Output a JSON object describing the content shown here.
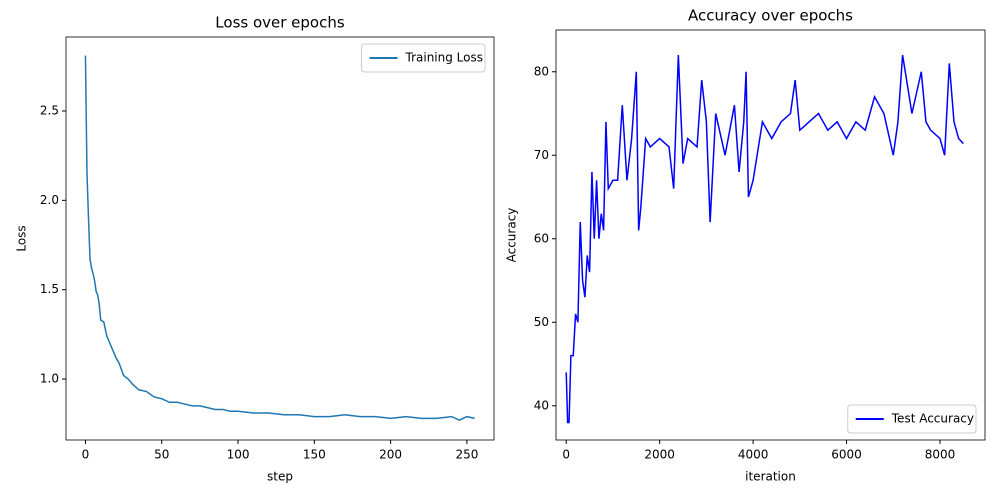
{
  "chart_data": [
    {
      "type": "line",
      "title": "Loss over epochs",
      "xlabel": "step",
      "ylabel": "Loss",
      "x": [
        0,
        1,
        2,
        3,
        4,
        5,
        6,
        7,
        8,
        9,
        10,
        12,
        14,
        16,
        18,
        20,
        22,
        25,
        28,
        31,
        35,
        40,
        45,
        50,
        55,
        60,
        65,
        70,
        75,
        80,
        85,
        90,
        95,
        100,
        110,
        120,
        130,
        140,
        150,
        160,
        170,
        180,
        190,
        200,
        210,
        220,
        230,
        240,
        245,
        250,
        255
      ],
      "series": [
        {
          "name": "Training Loss",
          "color": "#1f77b4",
          "values": [
            2.81,
            2.15,
            1.9,
            1.67,
            1.62,
            1.59,
            1.55,
            1.49,
            1.47,
            1.42,
            1.33,
            1.32,
            1.24,
            1.2,
            1.16,
            1.12,
            1.09,
            1.02,
            1.0,
            0.97,
            0.94,
            0.93,
            0.9,
            0.89,
            0.87,
            0.87,
            0.86,
            0.85,
            0.85,
            0.84,
            0.83,
            0.83,
            0.82,
            0.82,
            0.81,
            0.81,
            0.8,
            0.8,
            0.79,
            0.79,
            0.8,
            0.79,
            0.79,
            0.78,
            0.79,
            0.78,
            0.78,
            0.79,
            0.77,
            0.79,
            0.78
          ]
        }
      ],
      "xlim": [
        -12.75,
        267.75
      ],
      "ylim": [
        0.659,
        2.914
      ],
      "xticks": [
        0,
        50,
        100,
        150,
        200,
        250
      ],
      "yticks": [
        {
          "value": 1.0,
          "label": "1.0"
        },
        {
          "value": 1.5,
          "label": "1.5"
        },
        {
          "value": 2.0,
          "label": "2.0"
        },
        {
          "value": 2.5,
          "label": "2.5"
        }
      ],
      "legend": "upper right"
    },
    {
      "type": "line",
      "title": "Accuracy over epochs",
      "xlabel": "iteration",
      "ylabel": "Accuracy",
      "x": [
        0,
        30,
        60,
        100,
        150,
        200,
        250,
        300,
        350,
        400,
        450,
        500,
        550,
        600,
        650,
        700,
        750,
        800,
        850,
        900,
        1000,
        1100,
        1200,
        1300,
        1400,
        1500,
        1550,
        1600,
        1700,
        1800,
        2000,
        2200,
        2300,
        2400,
        2500,
        2600,
        2800,
        2900,
        3000,
        3080,
        3200,
        3400,
        3500,
        3600,
        3700,
        3800,
        3850,
        3900,
        4000,
        4200,
        4400,
        4600,
        4800,
        4900,
        5000,
        5200,
        5400,
        5600,
        5800,
        6000,
        6200,
        6400,
        6500,
        6600,
        6800,
        7000,
        7100,
        7200,
        7400,
        7600,
        7700,
        7800,
        8000,
        8100,
        8200,
        8300,
        8400,
        8500
      ],
      "series": [
        {
          "name": "Test Accuracy",
          "color": "#0000ff",
          "values": [
            44,
            38,
            38,
            46,
            46,
            51,
            50,
            62,
            55,
            53,
            58,
            56,
            68,
            60,
            67,
            60,
            63,
            61,
            74,
            66,
            67,
            67,
            76,
            67,
            72,
            80,
            61,
            64,
            72,
            71,
            72,
            71,
            66,
            82,
            69,
            72,
            71,
            79,
            74,
            62,
            75,
            70,
            73,
            76,
            68,
            74,
            80,
            65,
            67,
            74,
            72,
            74,
            75,
            79,
            73,
            74,
            75,
            73,
            74,
            72,
            74,
            73,
            75,
            77,
            75,
            70,
            74,
            82,
            75,
            80,
            74,
            73,
            72,
            70,
            81,
            74,
            72,
            71.4
          ]
        }
      ],
      "xlim": [
        -219,
        8964
      ],
      "ylim": [
        35.9,
        85.0
      ],
      "xticks": [
        0,
        2000,
        4000,
        6000,
        8000
      ],
      "yticks": [
        40,
        50,
        60,
        70,
        80
      ],
      "legend": "lower right"
    }
  ]
}
